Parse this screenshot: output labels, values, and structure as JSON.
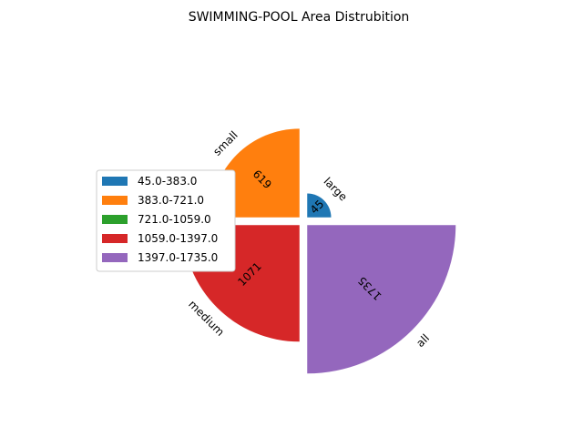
{
  "chart_data": {
    "type": "pie",
    "title": "SWIMMING-POOL Area Distrubition",
    "categories": [
      "large",
      "small",
      "medium",
      "all"
    ],
    "values": [
      45,
      619,
      1071,
      1735
    ],
    "value_labels": [
      "45",
      "619",
      "1071",
      "1735"
    ],
    "slice_colors": [
      "#1f77b4",
      "#ff7f0e",
      "#d62728",
      "#9467bd"
    ],
    "legend": {
      "placement": "left",
      "entries": [
        {
          "label": "45.0-383.0",
          "color": "#1f77b4"
        },
        {
          "label": "383.0-721.0",
          "color": "#ff7f0e"
        },
        {
          "label": "721.0-1059.0",
          "color": "#2ca02c"
        },
        {
          "label": "1059.0-1397.0",
          "color": "#d62728"
        },
        {
          "label": "1397.0-1735.0",
          "color": "#9467bd"
        }
      ]
    }
  }
}
